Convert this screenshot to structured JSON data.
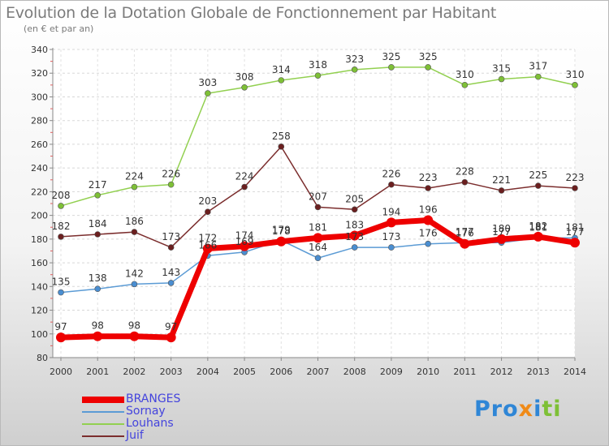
{
  "title": "Evolution de la Dotation Globale de Fonctionnement par Habitant",
  "subtitle": "(en € et par an)",
  "logo": {
    "p1": "Pro",
    "p2": "x",
    "p3": "i",
    "p4": "ti"
  },
  "chart_data": {
    "type": "line",
    "x": [
      "2000",
      "2001",
      "2002",
      "2003",
      "2004",
      "2005",
      "2006",
      "2007",
      "2008",
      "2009",
      "2010",
      "2011",
      "2012",
      "2013",
      "2014"
    ],
    "ylim": [
      80,
      340
    ],
    "yticks": [
      80,
      100,
      120,
      140,
      160,
      180,
      200,
      220,
      240,
      260,
      280,
      300,
      320,
      340
    ],
    "grid": true,
    "legend_position": "bottom-left",
    "series": [
      {
        "name": "BRANGES",
        "color": "#ee0000",
        "marker": "#ee0000",
        "values": [
          97,
          98,
          98,
          97,
          172,
          174,
          178,
          181,
          183,
          194,
          196,
          176,
          180,
          182,
          177
        ]
      },
      {
        "name": "Sornay",
        "color": "#5b9bd5",
        "marker": "#4a8ed1",
        "values": [
          135,
          138,
          142,
          143,
          166,
          169,
          179,
          164,
          173,
          173,
          176,
          177,
          177,
          181,
          181
        ]
      },
      {
        "name": "Louhans",
        "color": "#92d050",
        "marker": "#7ec036",
        "values": [
          208,
          217,
          224,
          226,
          303,
          308,
          314,
          318,
          323,
          325,
          325,
          310,
          315,
          317,
          310
        ]
      },
      {
        "name": "Juif",
        "color": "#7b2d2d",
        "marker": "#6b1f1f",
        "values": [
          182,
          184,
          186,
          173,
          203,
          224,
          258,
          207,
          205,
          226,
          223,
          228,
          221,
          225,
          223
        ]
      }
    ]
  }
}
